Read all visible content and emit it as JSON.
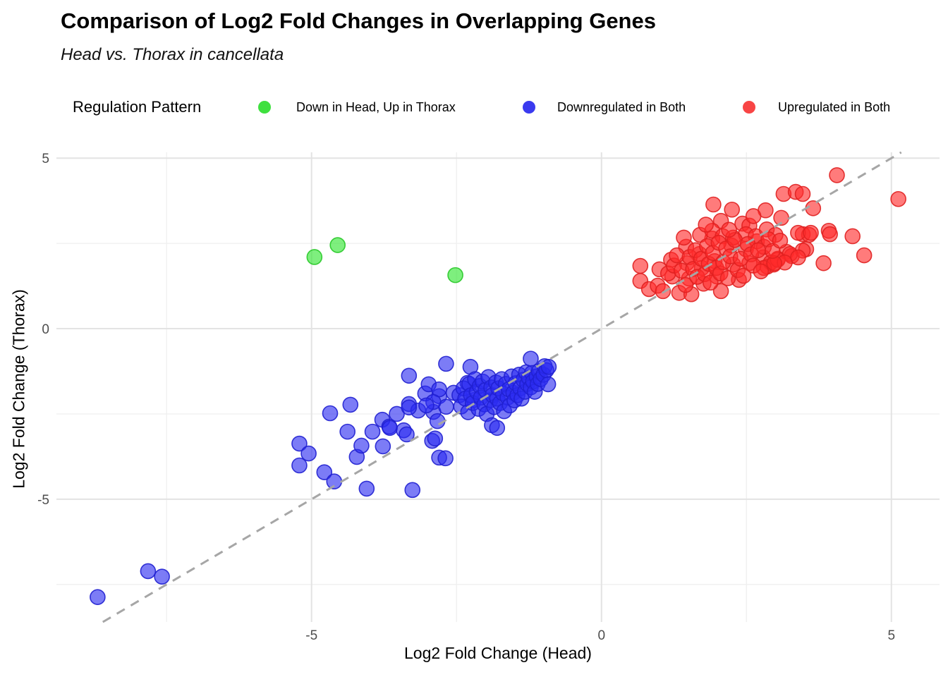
{
  "title": "Comparison of Log2 Fold Changes in Overlapping Genes",
  "subtitle": "Head vs. Thorax in cancellata",
  "legend": {
    "title": "Regulation Pattern",
    "items": [
      {
        "label": "Down in Head, Up in Thorax",
        "color": "#3fe03f"
      },
      {
        "label": "Downregulated in Both",
        "color": "#3a3aef"
      },
      {
        "label": "Upregulated in Both",
        "color": "#f84545"
      }
    ]
  },
  "chart_data": {
    "type": "scatter",
    "title": "Comparison of Log2 Fold Changes in Overlapping Genes",
    "subtitle": "Head vs. Thorax in cancellata",
    "xlabel": "Log2 Fold Change (Head)",
    "ylabel": "Log2 Fold Change (Thorax)",
    "xlim": [
      -9.4,
      5.83
    ],
    "ylim": [
      -8.6,
      5.17
    ],
    "x_ticks": [
      -5,
      0,
      5
    ],
    "y_ticks": [
      -5,
      0,
      5
    ],
    "x_minor_ticks": [
      -7.5,
      -2.5,
      2.5
    ],
    "y_minor_ticks": [
      -7.5,
      -2.5,
      2.5
    ],
    "grid": true,
    "legend_position": "top",
    "reference_line": {
      "slope": 1,
      "intercept": 0,
      "style": "dashed",
      "color": "#a6a6a6"
    },
    "series": [
      {
        "name": "Down in Head, Up in Thorax",
        "fill": "#2fe52f",
        "stroke": "#28c828",
        "points": [
          [
            -4.95,
            2.1
          ],
          [
            -4.55,
            2.45
          ],
          [
            -2.52,
            1.57
          ]
        ]
      },
      {
        "name": "Downregulated in Both",
        "fill": "#2b2bf0",
        "stroke": "#2020d0",
        "points": [
          [
            -8.69,
            -7.87
          ],
          [
            -7.82,
            -7.11
          ],
          [
            -7.58,
            -7.27
          ],
          [
            -5.21,
            -3.37
          ],
          [
            -5.05,
            -3.66
          ],
          [
            -5.21,
            -4.01
          ],
          [
            -4.78,
            -4.21
          ],
          [
            -4.68,
            -2.48
          ],
          [
            -4.61,
            -4.48
          ],
          [
            -4.38,
            -3.02
          ],
          [
            -4.33,
            -2.23
          ],
          [
            -4.22,
            -3.76
          ],
          [
            -4.14,
            -3.43
          ],
          [
            -4.05,
            -4.69
          ],
          [
            -3.95,
            -3.02
          ],
          [
            -3.78,
            -2.67
          ],
          [
            -3.77,
            -3.45
          ],
          [
            -3.66,
            -2.87
          ],
          [
            -3.65,
            -2.91
          ],
          [
            -3.53,
            -2.5
          ],
          [
            -3.41,
            -2.98
          ],
          [
            -3.36,
            -3.1
          ],
          [
            -3.32,
            -2.21
          ],
          [
            -3.26,
            -4.73
          ],
          [
            -3.16,
            -2.4
          ],
          [
            -3.04,
            -1.9
          ],
          [
            -2.92,
            -3.29
          ],
          [
            -2.9,
            -2.44
          ],
          [
            -2.87,
            -3.22
          ],
          [
            -2.83,
            -2.71
          ],
          [
            -2.8,
            -3.78
          ],
          [
            -2.69,
            -3.8
          ],
          [
            -2.8,
            -1.98
          ],
          [
            -2.68,
            -2.29
          ],
          [
            -3.32,
            -1.38
          ],
          [
            -2.68,
            -1.03
          ],
          [
            -2.26,
            -1.12
          ],
          [
            -2.98,
            -1.63
          ],
          [
            -2.8,
            -1.78
          ],
          [
            -2.55,
            -1.88
          ],
          [
            -2.9,
            -2.15
          ],
          [
            -3.02,
            -2.25
          ],
          [
            -3.32,
            -2.31
          ],
          [
            -2.31,
            -1.59
          ],
          [
            -2.2,
            -2.09
          ],
          [
            -2.45,
            -1.95
          ],
          [
            -2.42,
            -2.28
          ],
          [
            -2.38,
            -1.75
          ],
          [
            -2.35,
            -2.05
          ],
          [
            -2.3,
            -2.45
          ],
          [
            -2.28,
            -1.62
          ],
          [
            -2.25,
            -1.95
          ],
          [
            -2.22,
            -2.18
          ],
          [
            -2.18,
            -1.48
          ],
          [
            -2.15,
            -1.85
          ],
          [
            -2.12,
            -2.35
          ],
          [
            -2.1,
            -1.68
          ],
          [
            -2.08,
            -2.02
          ],
          [
            -2.05,
            -1.55
          ],
          [
            -2.02,
            -2.22
          ],
          [
            -2.0,
            -1.8
          ],
          [
            -1.98,
            -2.5
          ],
          [
            -1.95,
            -1.42
          ],
          [
            -1.92,
            -2.1
          ],
          [
            -1.9,
            -1.72
          ],
          [
            -1.89,
            -2.83
          ],
          [
            -1.88,
            -1.95
          ],
          [
            -1.85,
            -2.3
          ],
          [
            -1.82,
            -1.58
          ],
          [
            -1.8,
            -2.91
          ],
          [
            -1.8,
            -2.05
          ],
          [
            -1.78,
            -1.75
          ],
          [
            -1.75,
            -2.18
          ],
          [
            -1.72,
            -1.48
          ],
          [
            -1.7,
            -1.9
          ],
          [
            -1.68,
            -2.42
          ],
          [
            -1.65,
            -1.62
          ],
          [
            -1.62,
            -2.02
          ],
          [
            -1.6,
            -1.78
          ],
          [
            -1.58,
            -2.25
          ],
          [
            -1.55,
            -1.4
          ],
          [
            -1.52,
            -1.88
          ],
          [
            -1.5,
            -2.1
          ],
          [
            -1.48,
            -1.6
          ],
          [
            -1.45,
            -1.95
          ],
          [
            -1.42,
            -1.35
          ],
          [
            -1.4,
            -1.75
          ],
          [
            -1.38,
            -2.05
          ],
          [
            -1.35,
            -1.5
          ],
          [
            -1.32,
            -1.85
          ],
          [
            -1.3,
            -1.28
          ],
          [
            -1.28,
            -1.62
          ],
          [
            -1.25,
            -1.45
          ],
          [
            -1.22,
            -1.72
          ],
          [
            -1.2,
            -1.3
          ],
          [
            -1.18,
            -1.55
          ],
          [
            -1.15,
            -1.85
          ],
          [
            -1.12,
            -1.4
          ],
          [
            -1.1,
            -1.62
          ],
          [
            -1.08,
            -1.25
          ],
          [
            -1.05,
            -1.48
          ],
          [
            -1.22,
            -0.88
          ],
          [
            -1.0,
            -1.35
          ],
          [
            -0.98,
            -1.1
          ],
          [
            -0.95,
            -1.22
          ],
          [
            -0.92,
            -1.63
          ],
          [
            -0.91,
            -1.12
          ]
        ]
      },
      {
        "name": "Upregulated in Both",
        "fill": "#ff2a2a",
        "stroke": "#e02020",
        "points": [
          [
            0.67,
            1.84
          ],
          [
            0.67,
            1.4
          ],
          [
            0.82,
            1.16
          ],
          [
            1.0,
            1.74
          ],
          [
            0.97,
            1.26
          ],
          [
            1.06,
            1.1
          ],
          [
            1.2,
            2.02
          ],
          [
            1.22,
            1.53
          ],
          [
            1.34,
            1.05
          ],
          [
            1.46,
            2.4
          ],
          [
            1.47,
            1.92
          ],
          [
            1.51,
            1.47
          ],
          [
            1.55,
            1.01
          ],
          [
            1.69,
            2.19
          ],
          [
            1.73,
            1.78
          ],
          [
            1.76,
            1.32
          ],
          [
            1.91,
            2.64
          ],
          [
            1.95,
            1.98
          ],
          [
            1.99,
            1.53
          ],
          [
            2.06,
            1.1
          ],
          [
            2.24,
            2.44
          ],
          [
            2.27,
            1.88
          ],
          [
            2.37,
            1.43
          ],
          [
            2.49,
            2.33
          ],
          [
            2.55,
            1.92
          ],
          [
            2.68,
            2.56
          ],
          [
            2.79,
            2.09
          ],
          [
            2.86,
            1.82
          ],
          [
            2.92,
            1.94
          ],
          [
            1.42,
            2.67
          ],
          [
            1.7,
            2.75
          ],
          [
            1.93,
            3.64
          ],
          [
            2.25,
            3.49
          ],
          [
            3.14,
            3.95
          ],
          [
            3.35,
            4.01
          ],
          [
            3.47,
            3.95
          ],
          [
            2.83,
            3.47
          ],
          [
            3.65,
            3.53
          ],
          [
            2.06,
            3.16
          ],
          [
            2.43,
            3.08
          ],
          [
            2.55,
            3.02
          ],
          [
            1.91,
            2.87
          ],
          [
            2.09,
            2.71
          ],
          [
            2.27,
            2.67
          ],
          [
            2.49,
            2.77
          ],
          [
            2.66,
            2.71
          ],
          [
            2.85,
            2.91
          ],
          [
            3.0,
            2.75
          ],
          [
            3.47,
            2.77
          ],
          [
            3.58,
            2.75
          ],
          [
            3.92,
            2.87
          ],
          [
            3.19,
            2.25
          ],
          [
            3.04,
            2.05
          ],
          [
            3.28,
            2.13
          ],
          [
            3.53,
            2.33
          ],
          [
            3.83,
            1.92
          ],
          [
            2.97,
            1.88
          ],
          [
            4.06,
            4.5
          ],
          [
            5.12,
            3.8
          ],
          [
            4.33,
            2.71
          ],
          [
            4.53,
            2.15
          ],
          [
            2.8,
            2.4
          ],
          [
            3.47,
            2.29
          ],
          [
            3.25,
            2.19
          ],
          [
            3.39,
            2.09
          ],
          [
            3.04,
            2.02
          ],
          [
            3.16,
            1.94
          ],
          [
            2.8,
            1.78
          ],
          [
            2.98,
            1.92
          ],
          [
            3.39,
            2.81
          ],
          [
            3.61,
            2.81
          ],
          [
            3.94,
            2.77
          ],
          [
            1.15,
            1.62
          ],
          [
            1.25,
            1.85
          ],
          [
            1.3,
            2.15
          ],
          [
            1.38,
            1.7
          ],
          [
            1.45,
            1.28
          ],
          [
            1.52,
            2.1
          ],
          [
            1.58,
            1.75
          ],
          [
            1.62,
            2.3
          ],
          [
            1.65,
            1.52
          ],
          [
            1.72,
            2.05
          ],
          [
            1.78,
            1.6
          ],
          [
            1.82,
            2.42
          ],
          [
            1.85,
            1.9
          ],
          [
            1.88,
            1.35
          ],
          [
            1.92,
            2.22
          ],
          [
            1.98,
            1.78
          ],
          [
            2.02,
            2.52
          ],
          [
            2.05,
            1.62
          ],
          [
            2.1,
            1.95
          ],
          [
            2.15,
            2.35
          ],
          [
            2.18,
            1.48
          ],
          [
            2.22,
            2.12
          ],
          [
            2.3,
            2.6
          ],
          [
            2.35,
            1.72
          ],
          [
            2.4,
            2.05
          ],
          [
            2.45,
            1.55
          ],
          [
            2.52,
            2.48
          ],
          [
            2.58,
            2.18
          ],
          [
            2.62,
            1.85
          ],
          [
            2.7,
            2.3
          ],
          [
            2.75,
            1.68
          ],
          [
            2.88,
            2.62
          ],
          [
            2.95,
            2.28
          ],
          [
            3.08,
            2.58
          ],
          [
            3.1,
            3.25
          ],
          [
            2.62,
            3.3
          ],
          [
            2.2,
            2.9
          ],
          [
            1.8,
            3.05
          ]
        ]
      }
    ]
  },
  "colors": {
    "grid_major": "#e3e3e3",
    "grid_minor": "#efefef",
    "tick_label": "#4d4d4d",
    "reference_line": "#a6a6a6"
  }
}
